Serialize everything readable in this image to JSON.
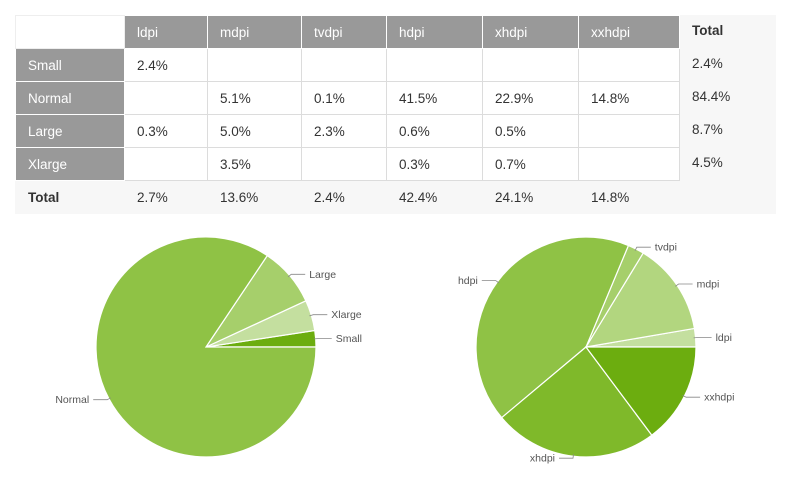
{
  "table": {
    "columns": [
      "ldpi",
      "mdpi",
      "tvdpi",
      "hdpi",
      "xhdpi",
      "xxhdpi"
    ],
    "total_label": "Total",
    "rows": [
      {
        "label": "Small",
        "cells": [
          "2.4%",
          "",
          "",
          "",
          "",
          ""
        ],
        "total": "2.4%"
      },
      {
        "label": "Normal",
        "cells": [
          "",
          "5.1%",
          "0.1%",
          "41.5%",
          "22.9%",
          "14.8%"
        ],
        "total": "84.4%"
      },
      {
        "label": "Large",
        "cells": [
          "0.3%",
          "5.0%",
          "2.3%",
          "0.6%",
          "0.5%",
          ""
        ],
        "total": "8.7%"
      },
      {
        "label": "Xlarge",
        "cells": [
          "",
          "3.5%",
          "",
          "0.3%",
          "0.7%",
          ""
        ],
        "total": "4.5%"
      }
    ],
    "footer": {
      "label": "Total",
      "cells": [
        "2.7%",
        "13.6%",
        "2.4%",
        "42.4%",
        "24.1%",
        "14.8%"
      ]
    }
  },
  "chart_data": [
    {
      "type": "pie",
      "title": "",
      "slices": [
        {
          "label": "Small",
          "value": 2.4,
          "color": "#6cad0f"
        },
        {
          "label": "Xlarge",
          "value": 4.5,
          "color": "#c4df9f"
        },
        {
          "label": "Large",
          "value": 8.7,
          "color": "#a6cf6b"
        },
        {
          "label": "Normal",
          "value": 84.4,
          "color": "#8fc245"
        }
      ]
    },
    {
      "type": "pie",
      "title": "",
      "slices": [
        {
          "label": "ldpi",
          "value": 2.7,
          "color": "#c4df9f"
        },
        {
          "label": "mdpi",
          "value": 13.6,
          "color": "#b2d67f"
        },
        {
          "label": "tvdpi",
          "value": 2.4,
          "color": "#a6cf6b"
        },
        {
          "label": "hdpi",
          "value": 42.4,
          "color": "#8fc245"
        },
        {
          "label": "xhdpi",
          "value": 24.1,
          "color": "#7fb92a"
        },
        {
          "label": "xxhdpi",
          "value": 14.8,
          "color": "#6cad0f"
        }
      ]
    }
  ]
}
